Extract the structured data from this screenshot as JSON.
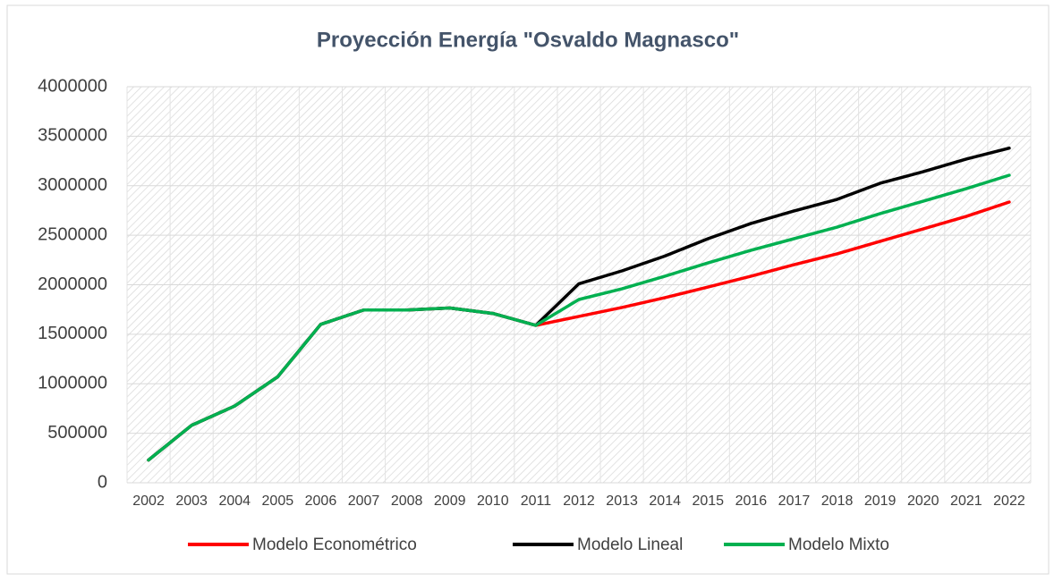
{
  "chart_data": {
    "type": "line",
    "title": "Proyección Energía \"Osvaldo Magnasco\"",
    "categories": [
      "2002",
      "2003",
      "2004",
      "2005",
      "2006",
      "2007",
      "2008",
      "2009",
      "2010",
      "2011",
      "2012",
      "2013",
      "2014",
      "2015",
      "2016",
      "2017",
      "2018",
      "2019",
      "2020",
      "2021",
      "2022"
    ],
    "series": [
      {
        "name": "Modelo Econométrico",
        "color": "#ff0000",
        "values": [
          230000,
          580000,
          775000,
          1070000,
          1600000,
          1745000,
          1745000,
          1765000,
          1710000,
          1590000,
          1680000,
          1770000,
          1870000,
          1977000,
          2086000,
          2203000,
          2312000,
          2438000,
          2564000,
          2690000,
          2835000
        ]
      },
      {
        "name": "Modelo Lineal",
        "color": "#000000",
        "values": [
          230000,
          580000,
          775000,
          1070000,
          1600000,
          1745000,
          1745000,
          1765000,
          1710000,
          1590000,
          2010000,
          2140000,
          2290000,
          2465000,
          2619000,
          2745000,
          2862000,
          3025000,
          3142000,
          3269000,
          3380000
        ]
      },
      {
        "name": "Modelo Mixto",
        "color": "#00b050",
        "values": [
          230000,
          580000,
          775000,
          1070000,
          1600000,
          1745000,
          1745000,
          1765000,
          1710000,
          1590000,
          1851000,
          1959000,
          2086000,
          2221000,
          2348000,
          2465000,
          2582000,
          2718000,
          2844000,
          2970000,
          3106000
        ]
      }
    ],
    "ylim": [
      0,
      4000000
    ],
    "yticks": [
      0,
      500000,
      1000000,
      1500000,
      2000000,
      2500000,
      3000000,
      3500000,
      4000000
    ],
    "grid": true,
    "legend": "bottom"
  }
}
